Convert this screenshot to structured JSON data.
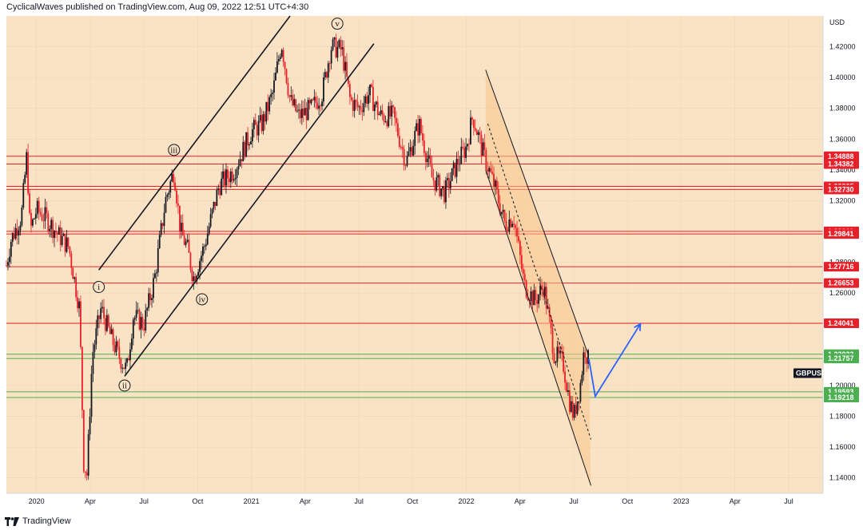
{
  "header": {
    "publisher_line": "CyclicalWaves published on TradingView.com, Aug 09, 2022 12:51 UTC+4:30"
  },
  "footer": {
    "brand": "TradingView"
  },
  "colors": {
    "background": "#fae3c5",
    "candle_up": "#131722",
    "candle_down": "#e8202a",
    "resistance": "#e8202a",
    "support": "#4caf50",
    "channel": "#131722",
    "projection": "#2962ff",
    "down_channel_fill": "#f7c48a"
  },
  "chart_data": {
    "type": "candlestick",
    "symbol": "GBPUSD",
    "currency": "USD",
    "ylim": [
      1.13,
      1.44
    ],
    "y_ticks": [
      "1.14000",
      "1.16000",
      "1.18000",
      "1.20000",
      "1.22000",
      "1.24000",
      "1.26000",
      "1.28000",
      "1.30000",
      "1.32000",
      "1.34000",
      "1.36000",
      "1.38000",
      "1.40000",
      "1.42000"
    ],
    "x_labels": [
      {
        "label": "2020",
        "t": 2020.0
      },
      {
        "label": "Apr",
        "t": 2020.25
      },
      {
        "label": "Jul",
        "t": 2020.5
      },
      {
        "label": "Oct",
        "t": 2020.75
      },
      {
        "label": "2021",
        "t": 2021.0
      },
      {
        "label": "Apr",
        "t": 2021.25
      },
      {
        "label": "Jul",
        "t": 2021.5
      },
      {
        "label": "Oct",
        "t": 2021.75
      },
      {
        "label": "2022",
        "t": 2022.0
      },
      {
        "label": "Apr",
        "t": 2022.25
      },
      {
        "label": "Jul",
        "t": 2022.5
      },
      {
        "label": "Oct",
        "t": 2022.75
      },
      {
        "label": "2023",
        "t": 2023.0
      },
      {
        "label": "Apr",
        "t": 2023.25
      },
      {
        "label": "Jul",
        "t": 2023.5
      }
    ],
    "xlim": [
      2019.86,
      2023.66
    ],
    "price_path": [
      [
        2019.86,
        1.278
      ],
      [
        2019.88,
        1.294
      ],
      [
        2019.93,
        1.31
      ],
      [
        2019.955,
        1.35
      ],
      [
        2019.97,
        1.3
      ],
      [
        2020.0,
        1.314
      ],
      [
        2020.05,
        1.308
      ],
      [
        2020.1,
        1.298
      ],
      [
        2020.15,
        1.29
      ],
      [
        2020.2,
        1.25
      ],
      [
        2020.22,
        1.15
      ],
      [
        2020.235,
        1.142
      ],
      [
        2020.26,
        1.22
      ],
      [
        2020.3,
        1.25
      ],
      [
        2020.35,
        1.23
      ],
      [
        2020.38,
        1.22
      ],
      [
        2020.42,
        1.21
      ],
      [
        2020.45,
        1.245
      ],
      [
        2020.5,
        1.24
      ],
      [
        2020.55,
        1.27
      ],
      [
        2020.6,
        1.32
      ],
      [
        2020.64,
        1.34
      ],
      [
        2020.67,
        1.3
      ],
      [
        2020.7,
        1.29
      ],
      [
        2020.73,
        1.27
      ],
      [
        2020.78,
        1.29
      ],
      [
        2020.85,
        1.33
      ],
      [
        2020.92,
        1.34
      ],
      [
        2021.0,
        1.365
      ],
      [
        2021.05,
        1.37
      ],
      [
        2021.1,
        1.39
      ],
      [
        2021.14,
        1.423
      ],
      [
        2021.18,
        1.385
      ],
      [
        2021.22,
        1.375
      ],
      [
        2021.28,
        1.38
      ],
      [
        2021.33,
        1.39
      ],
      [
        2021.37,
        1.42
      ],
      [
        2021.42,
        1.418
      ],
      [
        2021.46,
        1.385
      ],
      [
        2021.5,
        1.38
      ],
      [
        2021.55,
        1.39
      ],
      [
        2021.6,
        1.375
      ],
      [
        2021.66,
        1.375
      ],
      [
        2021.72,
        1.345
      ],
      [
        2021.78,
        1.37
      ],
      [
        2021.84,
        1.335
      ],
      [
        2021.9,
        1.325
      ],
      [
        2021.96,
        1.345
      ],
      [
        2022.0,
        1.355
      ],
      [
        2022.03,
        1.375
      ],
      [
        2022.08,
        1.35
      ],
      [
        2022.13,
        1.33
      ],
      [
        2022.18,
        1.305
      ],
      [
        2022.22,
        1.31
      ],
      [
        2022.27,
        1.265
      ],
      [
        2022.32,
        1.255
      ],
      [
        2022.36,
        1.265
      ],
      [
        2022.41,
        1.22
      ],
      [
        2022.45,
        1.215
      ],
      [
        2022.48,
        1.19
      ],
      [
        2022.5,
        1.18
      ],
      [
        2022.53,
        1.2
      ],
      [
        2022.55,
        1.225
      ],
      [
        2022.57,
        1.215
      ]
    ],
    "horizontal_levels": [
      {
        "value": 1.34888,
        "label": "1.34888",
        "kind": "resistance"
      },
      {
        "value": 1.34382,
        "label": "1.34382",
        "kind": "resistance"
      },
      {
        "value": 1.32935,
        "label": "1.32935",
        "kind": "resistance"
      },
      {
        "value": 1.3273,
        "label": "1.32730",
        "kind": "resistance"
      },
      {
        "value": 1.30011,
        "label": "1.30011",
        "kind": "resistance"
      },
      {
        "value": 1.29841,
        "label": "1.29841",
        "kind": "resistance"
      },
      {
        "value": 1.27716,
        "label": "1.27716",
        "kind": "resistance"
      },
      {
        "value": 1.26653,
        "label": "1.26653",
        "kind": "resistance"
      },
      {
        "value": 1.24041,
        "label": "1.24041",
        "kind": "resistance"
      },
      {
        "value": 1.22033,
        "label": "1.22033",
        "kind": "support"
      },
      {
        "value": 1.21757,
        "label": "1.21757",
        "kind": "support"
      },
      {
        "value": 1.19593,
        "label": "1.19593",
        "kind": "support"
      },
      {
        "value": 1.19218,
        "label": "1.19218",
        "kind": "support"
      }
    ],
    "symbol_tag_value": 1.208,
    "wave_labels": [
      {
        "text": "i",
        "t": 2020.29,
        "y": 1.264
      },
      {
        "text": "ii",
        "t": 2020.41,
        "y": 1.2
      },
      {
        "text": "iii",
        "t": 2020.64,
        "y": 1.353
      },
      {
        "text": "iv",
        "t": 2020.77,
        "y": 1.256
      },
      {
        "text": "v",
        "t": 2021.4,
        "y": 1.435
      }
    ],
    "up_channel": {
      "lower": [
        [
          2020.41,
          1.206
        ],
        [
          2021.57,
          1.422
        ]
      ],
      "upper": [
        [
          2020.29,
          1.275
        ],
        [
          2021.18,
          1.44
        ]
      ]
    },
    "down_channel": {
      "upper": [
        [
          2022.09,
          1.405
        ],
        [
          2022.57,
          1.219
        ]
      ],
      "lower": [
        [
          2022.09,
          1.34
        ],
        [
          2022.58,
          1.135
        ]
      ],
      "mid": [
        [
          2022.1,
          1.37
        ],
        [
          2022.58,
          1.165
        ]
      ]
    },
    "projection_path": [
      [
        2022.57,
        1.2175
      ],
      [
        2022.6,
        1.193
      ],
      [
        2022.81,
        1.24
      ]
    ]
  }
}
